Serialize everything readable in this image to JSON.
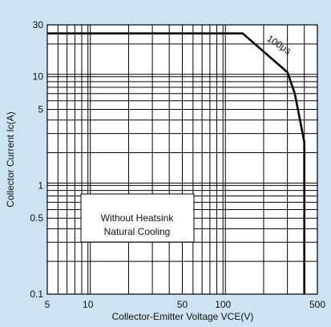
{
  "chart_data": {
    "type": "line",
    "xlabel": "Collector-Emitter Voltage VCE(V)",
    "ylabel": "Collector Current Ic(A)",
    "x_scale": "log",
    "y_scale": "log",
    "xlim": [
      5,
      500
    ],
    "ylim": [
      0.1,
      30
    ],
    "x_ticks": [
      {
        "value": 5,
        "label": "5"
      },
      {
        "value": 10,
        "label": "10"
      },
      {
        "value": 50,
        "label": "50"
      },
      {
        "value": 100,
        "label": "100"
      },
      {
        "value": 500,
        "label": "500"
      }
    ],
    "y_ticks": [
      {
        "value": 0.1,
        "label": "0.1"
      },
      {
        "value": 0.5,
        "label": "0.5"
      },
      {
        "value": 1,
        "label": "1"
      },
      {
        "value": 5,
        "label": "5"
      },
      {
        "value": 10,
        "label": "10"
      },
      {
        "value": 30,
        "label": "30"
      }
    ],
    "grid": true,
    "series": [
      {
        "points": [
          {
            "x": 5,
            "y": 25
          },
          {
            "x": 140,
            "y": 25
          },
          {
            "x": 300,
            "y": 11
          },
          {
            "x": 340,
            "y": 7
          },
          {
            "x": 400,
            "y": 2.5
          },
          {
            "x": 400,
            "y": 0.1
          }
        ]
      }
    ],
    "annotations": [
      {
        "text": "100μs"
      },
      {
        "lines": [
          "Without Heatsink",
          "Natural Cooling"
        ]
      }
    ],
    "colors": {
      "background": "#cde3f1",
      "plot": "#ffffff",
      "line": "#000000"
    }
  }
}
